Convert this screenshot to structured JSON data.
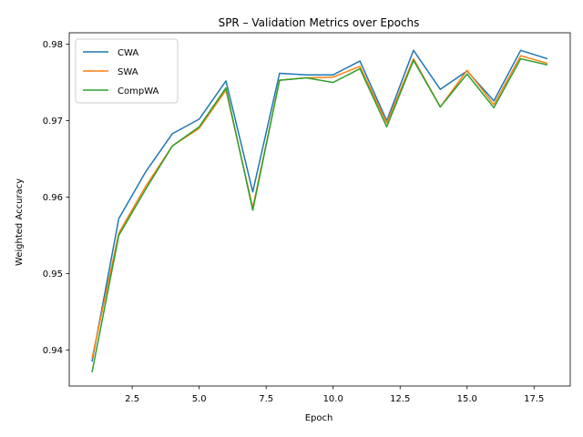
{
  "chart_data": {
    "type": "line",
    "title": "SPR – Validation Metrics over Epochs",
    "xlabel": "Epoch",
    "ylabel": "Weighted Accuracy",
    "xlim": [
      0.15,
      18.85
    ],
    "ylim": [
      0.9353,
      0.9815
    ],
    "x_ticks": [
      2.5,
      5.0,
      7.5,
      10.0,
      12.5,
      15.0,
      17.5
    ],
    "x_tick_labels": [
      "2.5",
      "5.0",
      "7.5",
      "10.0",
      "12.5",
      "15.0",
      "17.5"
    ],
    "y_ticks": [
      0.94,
      0.95,
      0.96,
      0.97,
      0.98
    ],
    "y_tick_labels": [
      "0.94",
      "0.95",
      "0.96",
      "0.97",
      "0.98"
    ],
    "grid": false,
    "legend_position": "upper-left",
    "x": [
      1,
      2,
      3,
      4,
      5,
      6,
      7,
      8,
      9,
      10,
      11,
      12,
      13,
      14,
      15,
      16,
      17,
      18
    ],
    "series": [
      {
        "name": "CWA",
        "color": "#1f77b4",
        "values": [
          0.9385,
          0.9572,
          0.9633,
          0.9683,
          0.9702,
          0.9752,
          0.9607,
          0.9762,
          0.976,
          0.976,
          0.9778,
          0.97,
          0.9792,
          0.9741,
          0.9765,
          0.9726,
          0.9792,
          0.9781
        ]
      },
      {
        "name": "SWA",
        "color": "#ff7f0e",
        "values": [
          0.9389,
          0.9553,
          0.9614,
          0.9667,
          0.969,
          0.974,
          0.9586,
          0.9753,
          0.9756,
          0.9757,
          0.9771,
          0.9697,
          0.9781,
          0.9718,
          0.9766,
          0.9721,
          0.9785,
          0.9775
        ]
      },
      {
        "name": "CompWA",
        "color": "#2ca02c",
        "values": [
          0.9371,
          0.955,
          0.961,
          0.9667,
          0.9692,
          0.9743,
          0.9583,
          0.9753,
          0.9756,
          0.975,
          0.9768,
          0.9692,
          0.9779,
          0.9718,
          0.9761,
          0.9717,
          0.9781,
          0.9773
        ]
      }
    ]
  }
}
